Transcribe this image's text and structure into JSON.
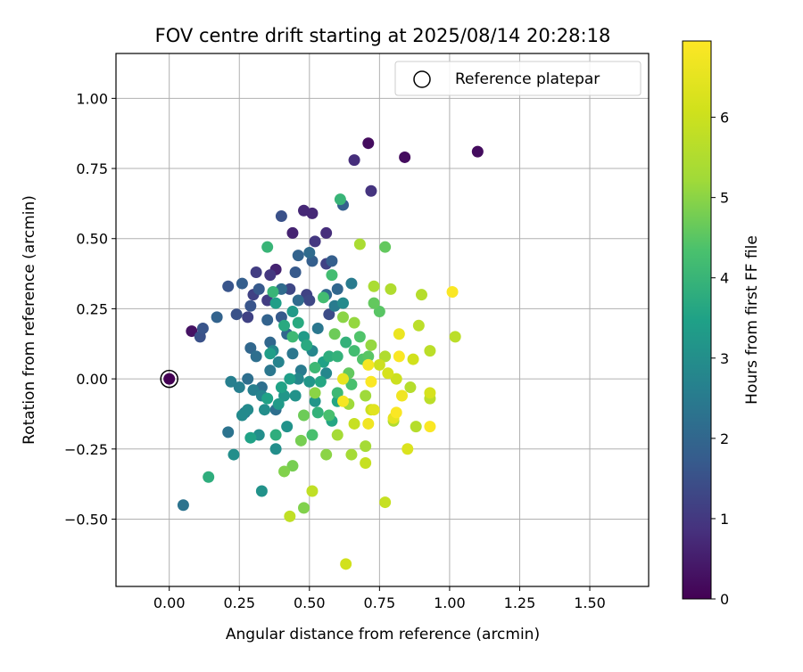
{
  "chart_data": {
    "type": "scatter",
    "title": "FOV centre drift starting at 2025/08/14 20:28:18",
    "xlabel": "Angular distance from reference (arcmin)",
    "ylabel": "Rotation from reference (arcmin)",
    "xlim": [
      -0.19,
      1.71
    ],
    "ylim": [
      -0.74,
      1.16
    ],
    "xticks": [
      0.0,
      0.25,
      0.5,
      0.75,
      1.0,
      1.25,
      1.5
    ],
    "xtick_labels": [
      "0.00",
      "0.25",
      "0.50",
      "0.75",
      "1.00",
      "1.25",
      "1.50"
    ],
    "yticks": [
      -0.5,
      -0.25,
      0.0,
      0.25,
      0.5,
      0.75,
      1.0
    ],
    "ytick_labels": [
      "−0.50",
      "−0.25",
      "0.00",
      "0.25",
      "0.50",
      "0.75",
      "1.00"
    ],
    "grid": true,
    "legend": {
      "position": "top-right",
      "entries": [
        {
          "label": "Reference platepar",
          "marker": "hollow-circle"
        }
      ]
    },
    "reference_point": {
      "x": 0.0,
      "y": 0.0,
      "h": 0.0
    },
    "colorbar": {
      "label": "Hours from first FF file",
      "range": [
        0,
        6.95
      ],
      "ticks": [
        0,
        1,
        2,
        3,
        4,
        5,
        6
      ],
      "tick_labels": [
        "0",
        "1",
        "2",
        "3",
        "4",
        "5",
        "6"
      ],
      "colormap": "viridis"
    },
    "series": [
      {
        "color_encoding": "hours",
        "points": [
          [
            0.71,
            0.84,
            0.2
          ],
          [
            0.84,
            0.79,
            0.2
          ],
          [
            1.1,
            0.81,
            0.2
          ],
          [
            0.08,
            0.17,
            0.3
          ],
          [
            0.38,
            0.39,
            0.6
          ],
          [
            0.44,
            0.52,
            0.6
          ],
          [
            0.48,
            0.6,
            0.7
          ],
          [
            0.51,
            0.59,
            0.7
          ],
          [
            0.66,
            0.78,
            0.8
          ],
          [
            0.72,
            0.67,
            0.9
          ],
          [
            0.56,
            0.52,
            0.8
          ],
          [
            0.52,
            0.49,
            1.0
          ],
          [
            0.36,
            0.37,
            1.0
          ],
          [
            0.31,
            0.38,
            1.1
          ],
          [
            0.35,
            0.28,
            1.1
          ],
          [
            0.3,
            0.3,
            1.2
          ],
          [
            0.28,
            0.22,
            1.2
          ],
          [
            0.49,
            0.3,
            1.2
          ],
          [
            0.56,
            0.41,
            1.2
          ],
          [
            0.43,
            0.32,
            1.3
          ],
          [
            0.5,
            0.28,
            1.3
          ],
          [
            0.57,
            0.23,
            1.4
          ],
          [
            0.4,
            0.58,
            1.5
          ],
          [
            0.24,
            0.23,
            1.5
          ],
          [
            0.11,
            0.15,
            1.5
          ],
          [
            0.12,
            0.18,
            1.6
          ],
          [
            0.21,
            0.33,
            1.6
          ],
          [
            0.29,
            0.26,
            1.6
          ],
          [
            0.32,
            0.32,
            1.7
          ],
          [
            0.4,
            0.22,
            1.7
          ],
          [
            0.45,
            0.38,
            1.7
          ],
          [
            0.51,
            0.42,
            1.8
          ],
          [
            0.58,
            0.42,
            1.8
          ],
          [
            0.62,
            0.62,
            1.8
          ],
          [
            0.26,
            0.34,
            1.8
          ],
          [
            0.46,
            0.44,
            1.9
          ],
          [
            0.35,
            0.21,
            1.9
          ],
          [
            0.17,
            0.22,
            1.9
          ],
          [
            0.29,
            0.11,
            2.0
          ],
          [
            0.36,
            0.13,
            2.0
          ],
          [
            0.42,
            0.16,
            2.0
          ],
          [
            0.56,
            0.3,
            2.0
          ],
          [
            0.6,
            0.32,
            2.0
          ],
          [
            0.5,
            0.45,
            2.1
          ],
          [
            0.46,
            0.28,
            2.1
          ],
          [
            0.4,
            0.32,
            2.1
          ],
          [
            0.38,
            -0.11,
            2.2
          ],
          [
            0.33,
            -0.03,
            2.2
          ],
          [
            0.28,
            0.0,
            2.2
          ],
          [
            0.31,
            0.08,
            2.2
          ],
          [
            0.21,
            -0.19,
            2.3
          ],
          [
            0.05,
            -0.45,
            2.3
          ],
          [
            0.27,
            -0.12,
            2.4
          ],
          [
            0.36,
            0.03,
            2.4
          ],
          [
            0.44,
            0.09,
            2.4
          ],
          [
            0.53,
            0.18,
            2.4
          ],
          [
            0.59,
            0.26,
            2.5
          ],
          [
            0.65,
            0.34,
            2.5
          ],
          [
            0.47,
            0.03,
            2.5
          ],
          [
            0.3,
            -0.04,
            2.6
          ],
          [
            0.22,
            -0.01,
            2.6
          ],
          [
            0.25,
            -0.03,
            2.6
          ],
          [
            0.39,
            0.06,
            2.7
          ],
          [
            0.33,
            -0.06,
            2.7
          ],
          [
            0.37,
            0.1,
            2.8
          ],
          [
            0.46,
            0.0,
            2.8
          ],
          [
            0.56,
            0.02,
            2.8
          ],
          [
            0.51,
            0.1,
            2.8
          ],
          [
            0.62,
            0.27,
            2.9
          ],
          [
            0.26,
            -0.13,
            2.9
          ],
          [
            0.28,
            -0.11,
            2.9
          ],
          [
            0.32,
            -0.2,
            3.0
          ],
          [
            0.34,
            -0.11,
            3.0
          ],
          [
            0.23,
            -0.27,
            3.0
          ],
          [
            0.38,
            -0.25,
            3.0
          ],
          [
            0.33,
            -0.4,
            3.1
          ],
          [
            0.42,
            -0.17,
            3.1
          ],
          [
            0.45,
            -0.06,
            3.1
          ],
          [
            0.5,
            -0.01,
            3.2
          ],
          [
            0.52,
            -0.08,
            3.2
          ],
          [
            0.41,
            -0.06,
            3.2
          ],
          [
            0.39,
            -0.09,
            3.3
          ],
          [
            0.48,
            0.15,
            3.3
          ],
          [
            0.44,
            0.24,
            3.3
          ],
          [
            0.38,
            0.27,
            3.4
          ],
          [
            0.36,
            0.09,
            3.4
          ],
          [
            0.43,
            0.0,
            3.4
          ],
          [
            0.29,
            -0.21,
            3.5
          ],
          [
            0.35,
            -0.07,
            3.5
          ],
          [
            0.4,
            -0.03,
            3.5
          ],
          [
            0.55,
            0.06,
            3.5
          ],
          [
            0.58,
            -0.15,
            3.6
          ],
          [
            0.6,
            -0.08,
            3.6
          ],
          [
            0.54,
            -0.01,
            3.6
          ],
          [
            0.49,
            0.12,
            3.7
          ],
          [
            0.46,
            0.2,
            3.7
          ],
          [
            0.41,
            0.19,
            3.7
          ],
          [
            0.38,
            -0.2,
            3.8
          ],
          [
            0.14,
            -0.35,
            3.8
          ],
          [
            0.57,
            0.08,
            3.8
          ],
          [
            0.53,
            -0.12,
            3.9
          ],
          [
            0.6,
            0.08,
            3.9
          ],
          [
            0.63,
            0.13,
            3.9
          ],
          [
            0.61,
            0.64,
            4.0
          ],
          [
            0.35,
            0.47,
            4.0
          ],
          [
            0.37,
            0.31,
            4.0
          ],
          [
            0.44,
            0.15,
            4.1
          ],
          [
            0.52,
            0.04,
            4.1
          ],
          [
            0.6,
            -0.05,
            4.1
          ],
          [
            0.66,
            0.1,
            4.2
          ],
          [
            0.58,
            0.37,
            4.2
          ],
          [
            0.55,
            0.29,
            4.2
          ],
          [
            0.51,
            -0.2,
            4.3
          ],
          [
            0.57,
            -0.13,
            4.3
          ],
          [
            0.65,
            -0.02,
            4.3
          ],
          [
            0.69,
            0.07,
            4.4
          ],
          [
            0.68,
            0.15,
            4.4
          ],
          [
            0.71,
            0.08,
            4.5
          ],
          [
            0.75,
            0.24,
            4.5
          ],
          [
            0.77,
            0.47,
            4.6
          ],
          [
            0.73,
            0.27,
            4.6
          ],
          [
            0.64,
            0.02,
            4.6
          ],
          [
            0.59,
            0.16,
            4.7
          ],
          [
            0.48,
            -0.13,
            4.7
          ],
          [
            0.47,
            -0.22,
            4.8
          ],
          [
            0.44,
            -0.31,
            4.8
          ],
          [
            0.41,
            -0.33,
            4.9
          ],
          [
            0.48,
            -0.46,
            4.9
          ],
          [
            0.52,
            -0.05,
            5.0
          ],
          [
            0.56,
            -0.27,
            5.0
          ],
          [
            0.62,
            0.22,
            5.0
          ],
          [
            0.66,
            0.2,
            5.1
          ],
          [
            0.72,
            0.12,
            5.1
          ],
          [
            0.7,
            -0.06,
            5.2
          ],
          [
            0.64,
            -0.09,
            5.2
          ],
          [
            0.6,
            -0.2,
            5.3
          ],
          [
            0.65,
            -0.27,
            5.3
          ],
          [
            0.7,
            -0.24,
            5.3
          ],
          [
            0.73,
            0.33,
            5.4
          ],
          [
            0.68,
            0.48,
            5.4
          ],
          [
            0.79,
            0.32,
            5.5
          ],
          [
            0.77,
            0.08,
            5.5
          ],
          [
            0.8,
            -0.15,
            5.5
          ],
          [
            0.86,
            -0.03,
            5.6
          ],
          [
            0.88,
            -0.17,
            5.6
          ],
          [
            0.9,
            0.3,
            5.6
          ],
          [
            0.93,
            0.1,
            5.7
          ],
          [
            0.89,
            0.19,
            5.7
          ],
          [
            0.93,
            -0.07,
            5.7
          ],
          [
            1.02,
            0.15,
            5.7
          ],
          [
            0.51,
            -0.4,
            5.8
          ],
          [
            0.43,
            -0.49,
            5.8
          ],
          [
            0.77,
            -0.44,
            5.9
          ],
          [
            0.7,
            -0.3,
            5.9
          ],
          [
            0.66,
            -0.16,
            5.9
          ],
          [
            0.72,
            -0.11,
            6.0
          ],
          [
            0.75,
            0.05,
            6.0
          ],
          [
            0.81,
            0.0,
            6.0
          ],
          [
            0.63,
            -0.66,
            6.1
          ],
          [
            0.87,
            0.07,
            6.1
          ],
          [
            0.78,
            0.02,
            6.2
          ],
          [
            0.93,
            -0.05,
            6.2
          ],
          [
            0.85,
            -0.25,
            6.3
          ],
          [
            0.73,
            -0.11,
            6.4
          ],
          [
            0.8,
            -0.14,
            6.5
          ],
          [
            0.62,
            0.0,
            6.5
          ],
          [
            0.82,
            0.16,
            6.6
          ],
          [
            0.83,
            -0.06,
            6.7
          ],
          [
            0.71,
            -0.16,
            6.7
          ],
          [
            0.62,
            -0.08,
            6.8
          ],
          [
            0.82,
            0.08,
            6.9
          ],
          [
            0.72,
            -0.01,
            6.9
          ],
          [
            0.93,
            -0.17,
            6.9
          ],
          [
            1.01,
            0.31,
            6.9
          ],
          [
            0.81,
            -0.12,
            6.9
          ],
          [
            0.71,
            0.05,
            6.8
          ]
        ]
      }
    ]
  }
}
